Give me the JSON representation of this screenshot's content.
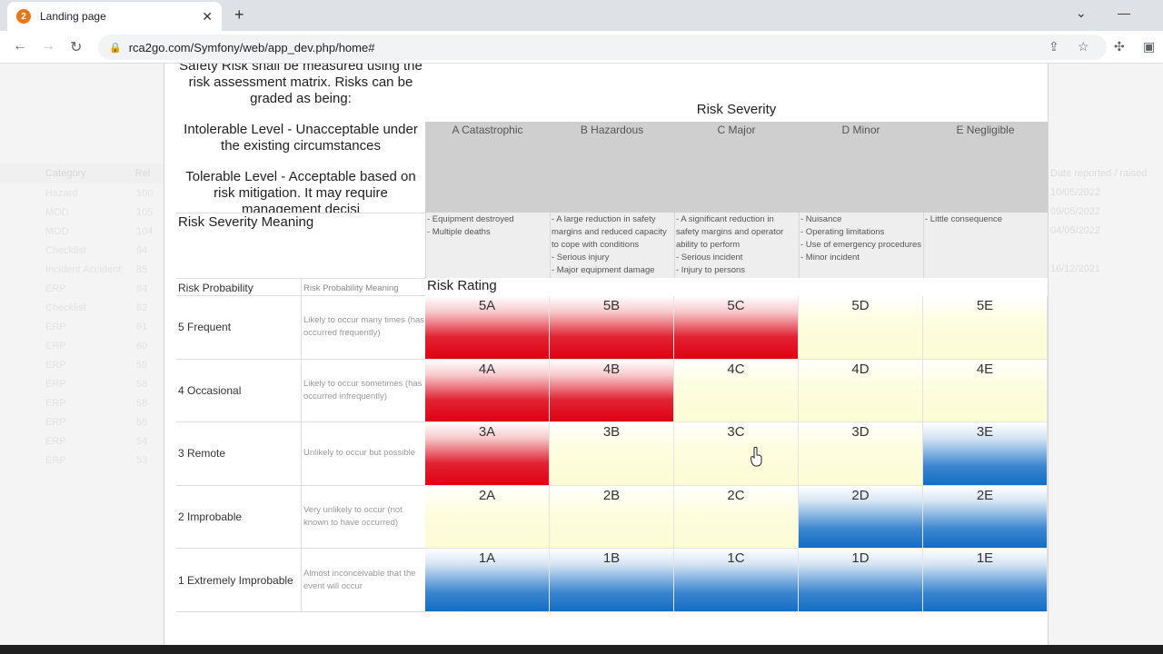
{
  "browser": {
    "tab_title": "Landing page",
    "tab_close": "✕",
    "new_tab": "+",
    "url": "rca2go.com/Symfony/web/app_dev.php/home#",
    "favicon_letter": "2"
  },
  "background": {
    "list_header": "Category",
    "list_header_2": "Rel",
    "rows": [
      "Hazard",
      "MOD",
      "MOD",
      "Checklist",
      "Incident Accident",
      "ERP",
      "Checklist",
      "ERP",
      "ERP",
      "ERP",
      "ERP",
      "ERP",
      "ERP",
      "ERP",
      "ERP"
    ],
    "counts": [
      "100",
      "105",
      "104",
      "94",
      "85",
      "84",
      "62",
      "61",
      "60",
      "59",
      "58",
      "58",
      "55",
      "54",
      "53"
    ],
    "right_header": "Date reported / raised",
    "right_rows": [
      "10/05/2022",
      "09/05/2022",
      "04/05/2022",
      "",
      "16/12/2021"
    ]
  },
  "intro": {
    "lead": "Safety Risk shall be measured using the risk assessment matrix. Risks can be graded as being:",
    "intolerable": "Intolerable Level - Unacceptable under the existing circumstances",
    "tolerable": "Tolerable Level - Acceptable based on risk mitigation. It may require management decisi"
  },
  "severity": {
    "title": "Risk Severity",
    "columns": [
      "A Catastrophic",
      "B Hazardous",
      "C Major",
      "D Minor",
      "E Negligible"
    ],
    "meaning_label": "Risk Severity Meaning",
    "meanings": [
      "- Equipment destroyed\n- Multiple deaths",
      "- A large reduction in safety margins and reduced capacity to cope with conditions\n- Serious injury\n- Major equipment damage",
      "- A significant reduction in safety margins and operator ability to perform\n- Serious incident\n- Injury to persons",
      "- Nuisance\n- Operating limitations\n- Use of emergency procedures\n- Minor incident",
      "- Little consequence"
    ]
  },
  "probability": {
    "header": "Risk Probability",
    "meaning_header": "Risk Probability Meaning",
    "rating_title": "Risk Rating",
    "rows": [
      {
        "label": "5 Frequent",
        "meaning": "Likely to occur many times (has occurred frequently)",
        "cells": [
          "5A",
          "5B",
          "5C",
          "5D",
          "5E"
        ],
        "levels": [
          "red",
          "red",
          "red",
          "yellowfade",
          "yellowfade"
        ]
      },
      {
        "label": "4 Occasional",
        "meaning": "Likely to occur sometimes (has occurred infrequently)",
        "cells": [
          "4A",
          "4B",
          "4C",
          "4D",
          "4E"
        ],
        "levels": [
          "red",
          "red",
          "yellowfade",
          "yellowfade",
          "yellowfade"
        ]
      },
      {
        "label": "3 Remote",
        "meaning": "Unlikely to occur but possible",
        "cells": [
          "3A",
          "3B",
          "3C",
          "3D",
          "3E"
        ],
        "levels": [
          "red",
          "yellowfade",
          "yellowfade",
          "yellowfade",
          "blue"
        ]
      },
      {
        "label": "2 Improbable",
        "meaning": "Very unlikely to occur (not known to have occurred)",
        "cells": [
          "2A",
          "2B",
          "2C",
          "2D",
          "2E"
        ],
        "levels": [
          "yellowfade",
          "yellowfade",
          "yellowfade",
          "blue",
          "blue"
        ]
      },
      {
        "label": "1 Extremely Improbable",
        "meaning": "Almost inconceivable that the event will occur",
        "cells": [
          "1A",
          "1B",
          "1C",
          "1D",
          "1E"
        ],
        "levels": [
          "blue",
          "blue",
          "blue",
          "blue",
          "blue"
        ]
      }
    ]
  },
  "colors": {
    "intolerable": "#e00012",
    "tolerable": "#fcfcd4",
    "acceptable": "#136dc4"
  }
}
